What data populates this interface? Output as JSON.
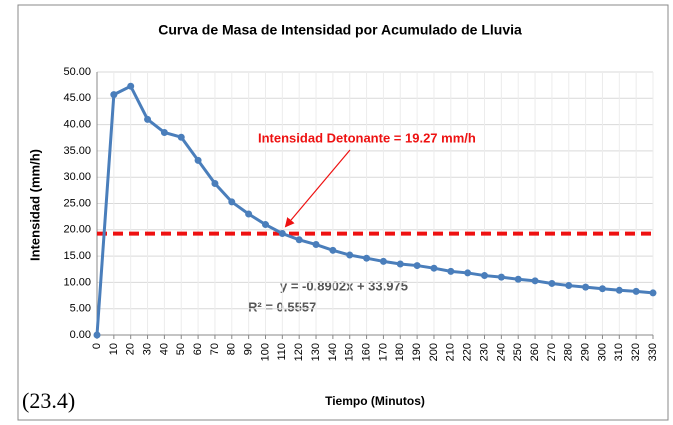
{
  "chart_data": {
    "type": "line",
    "title": "Curva de Masa de Intensidad por Acumulado de Lluvia",
    "x_label": "Tiempo (Minutos)",
    "y_label": "Intensidad (mm/h)",
    "x": [
      0,
      10,
      20,
      30,
      40,
      50,
      60,
      70,
      80,
      90,
      100,
      110,
      120,
      130,
      140,
      150,
      160,
      170,
      180,
      190,
      200,
      210,
      220,
      230,
      240,
      250,
      260,
      270,
      280,
      290,
      300,
      310,
      320,
      330
    ],
    "series": [
      {
        "name": "Intensidad",
        "color": "#4a7ebb",
        "values": [
          0,
          45.7,
          47.3,
          41.0,
          38.5,
          37.6,
          33.2,
          28.8,
          25.3,
          23.0,
          21.0,
          19.3,
          18.1,
          17.2,
          16.1,
          15.2,
          14.6,
          14.0,
          13.5,
          13.2,
          12.7,
          12.1,
          11.8,
          11.3,
          11.0,
          10.6,
          10.3,
          9.8,
          9.4,
          9.1,
          8.8,
          8.5,
          8.3,
          8.0
        ]
      }
    ],
    "xlim": [
      0,
      330
    ],
    "xticks": [
      0,
      10,
      20,
      30,
      40,
      50,
      60,
      70,
      80,
      90,
      100,
      110,
      120,
      130,
      140,
      150,
      160,
      170,
      180,
      190,
      200,
      210,
      220,
      230,
      240,
      250,
      260,
      270,
      280,
      290,
      300,
      310,
      320,
      330
    ],
    "ylim": [
      0,
      50
    ],
    "yticks": [
      {
        "value": 0,
        "label": "0.00"
      },
      {
        "value": 5,
        "label": "5.00"
      },
      {
        "value": 10,
        "label": "10.00"
      },
      {
        "value": 15,
        "label": "15.00"
      },
      {
        "value": 20,
        "label": "20.00"
      },
      {
        "value": 25,
        "label": "25.00"
      },
      {
        "value": 30,
        "label": "30.00"
      },
      {
        "value": 35,
        "label": "35.00"
      },
      {
        "value": 40,
        "label": "40.00"
      },
      {
        "value": 45,
        "label": "45.00"
      },
      {
        "value": 50,
        "label": "50.00"
      }
    ],
    "grid": true,
    "reference_line": {
      "value": 19.27,
      "color": "#ee1111",
      "label": "Intensidad Detonante = 19.27 mm/h",
      "points_to_x": 110
    },
    "trendline_equation": "y = -0.8902x + 33.975",
    "trendline_r2": "R² = 0.5557",
    "figure_label": "(23.4)"
  }
}
